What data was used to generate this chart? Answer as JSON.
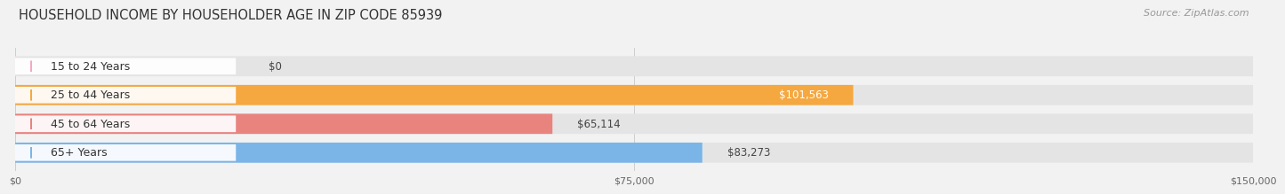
{
  "title": "HOUSEHOLD INCOME BY HOUSEHOLDER AGE IN ZIP CODE 85939",
  "source": "Source: ZipAtlas.com",
  "categories": [
    "15 to 24 Years",
    "25 to 44 Years",
    "45 to 64 Years",
    "65+ Years"
  ],
  "values": [
    0,
    101563,
    65114,
    83273
  ],
  "bar_colors": [
    "#F5A8BE",
    "#F5A840",
    "#E8837E",
    "#7BB5E8"
  ],
  "value_labels": [
    "$0",
    "$101,563",
    "$65,114",
    "$83,273"
  ],
  "value_label_white": [
    false,
    true,
    false,
    false
  ],
  "xlim": [
    0,
    150000
  ],
  "xtick_values": [
    0,
    75000,
    150000
  ],
  "xtick_labels": [
    "$0",
    "$75,000",
    "$150,000"
  ],
  "background_color": "#f2f2f2",
  "bar_background_color": "#e4e4e4",
  "title_fontsize": 10.5,
  "source_fontsize": 8,
  "label_fontsize": 9,
  "value_fontsize": 8.5
}
